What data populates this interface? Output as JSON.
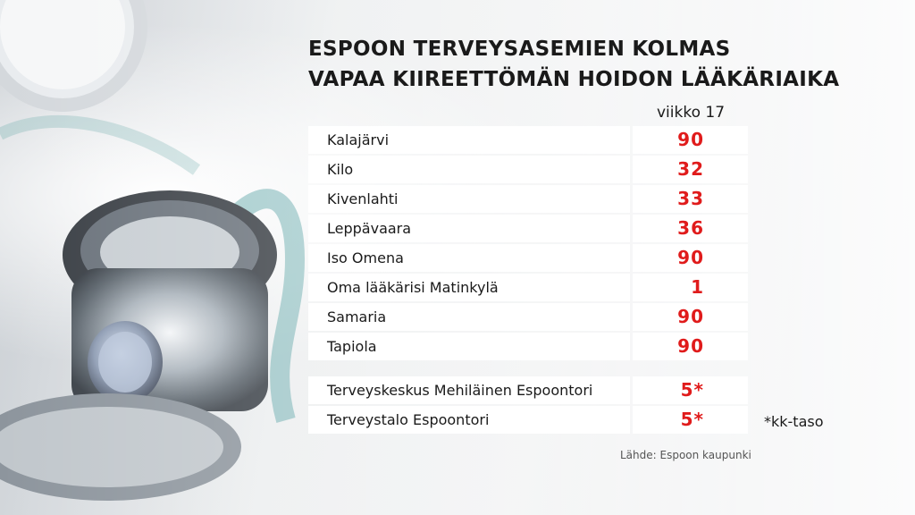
{
  "colors": {
    "value_red": "#e01b1b",
    "text_dark": "#1a1a1a",
    "row_background": "#ffffff"
  },
  "header": {
    "title_line1": "ESPOON TERVEYSASEMIEN KOLMAS",
    "title_line2": "VAPAA KIIREETTÖMÄN HOIDON LÄÄKÄRIAIKA",
    "week_label": "viikko 17"
  },
  "chart_data": {
    "type": "table",
    "title": "ESPOON TERVEYSASEMIEN KOLMAS VAPAA KIIREETTÖMÄN HOIDON LÄÄKÄRIAIKA",
    "column_header": "viikko 17",
    "rows": [
      {
        "name": "Kalajärvi",
        "value": "90"
      },
      {
        "name": "Kilo",
        "value": "32"
      },
      {
        "name": "Kivenlahti",
        "value": "33"
      },
      {
        "name": "Leppävaara",
        "value": "36"
      },
      {
        "name": "Iso Omena",
        "value": "90"
      },
      {
        "name": "Oma lääkärisi Matinkylä",
        "value": "1"
      },
      {
        "name": "Samaria",
        "value": "90"
      },
      {
        "name": "Tapiola",
        "value": "90"
      },
      {
        "name": "Terveyskeskus Mehiläinen Espoontori",
        "value": "5*"
      },
      {
        "name": "Terveystalo Espoontori",
        "value": "5*"
      }
    ],
    "note": "*kk-taso",
    "source": "Lähde: Espoon kaupunki"
  }
}
